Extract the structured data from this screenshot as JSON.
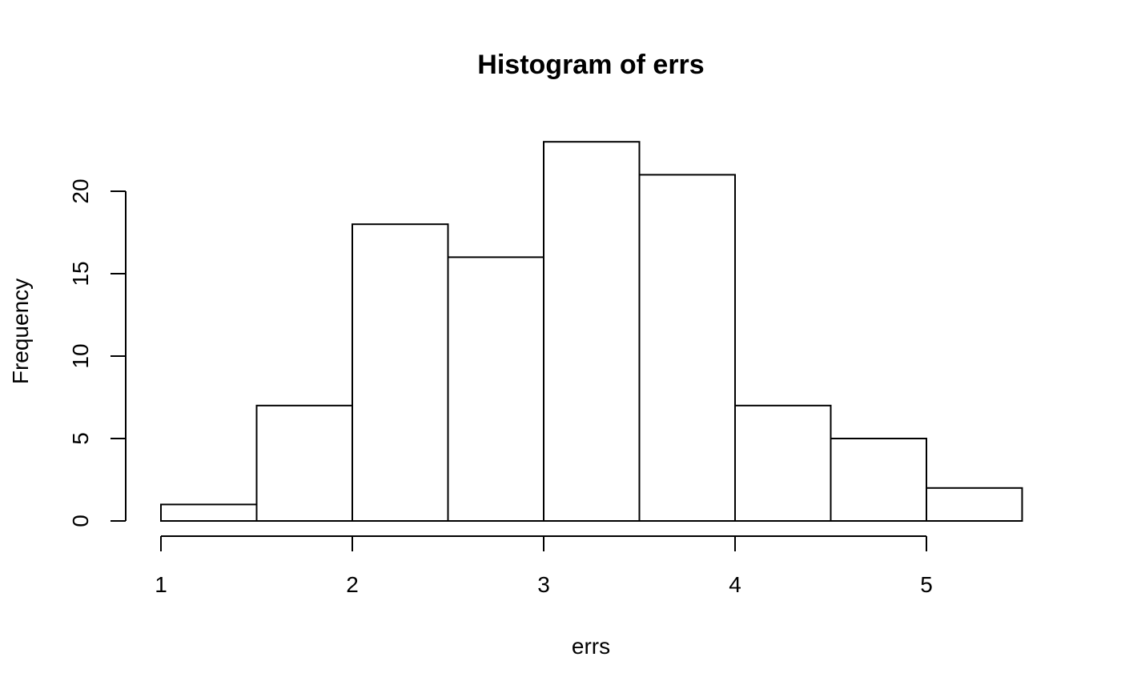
{
  "chart_data": {
    "type": "bar",
    "title": "Histogram of errs",
    "xlabel": "errs",
    "ylabel": "Frequency",
    "bins": [
      {
        "x0": 1.0,
        "x1": 1.5,
        "count": 1
      },
      {
        "x0": 1.5,
        "x1": 2.0,
        "count": 7
      },
      {
        "x0": 2.0,
        "x1": 2.5,
        "count": 18
      },
      {
        "x0": 2.5,
        "x1": 3.0,
        "count": 16
      },
      {
        "x0": 3.0,
        "x1": 3.5,
        "count": 23
      },
      {
        "x0": 3.5,
        "x1": 4.0,
        "count": 21
      },
      {
        "x0": 4.0,
        "x1": 4.5,
        "count": 7
      },
      {
        "x0": 4.5,
        "x1": 5.0,
        "count": 5
      },
      {
        "x0": 5.0,
        "x1": 5.5,
        "count": 2
      }
    ],
    "xticks": [
      "1",
      "2",
      "3",
      "4",
      "5"
    ],
    "yticks": [
      "0",
      "5",
      "10",
      "15",
      "20"
    ],
    "xlim": [
      1,
      5.5
    ],
    "ylim": [
      0,
      23
    ],
    "grid": false,
    "bar_fill": "#ffffff",
    "bar_stroke": "#000000"
  }
}
